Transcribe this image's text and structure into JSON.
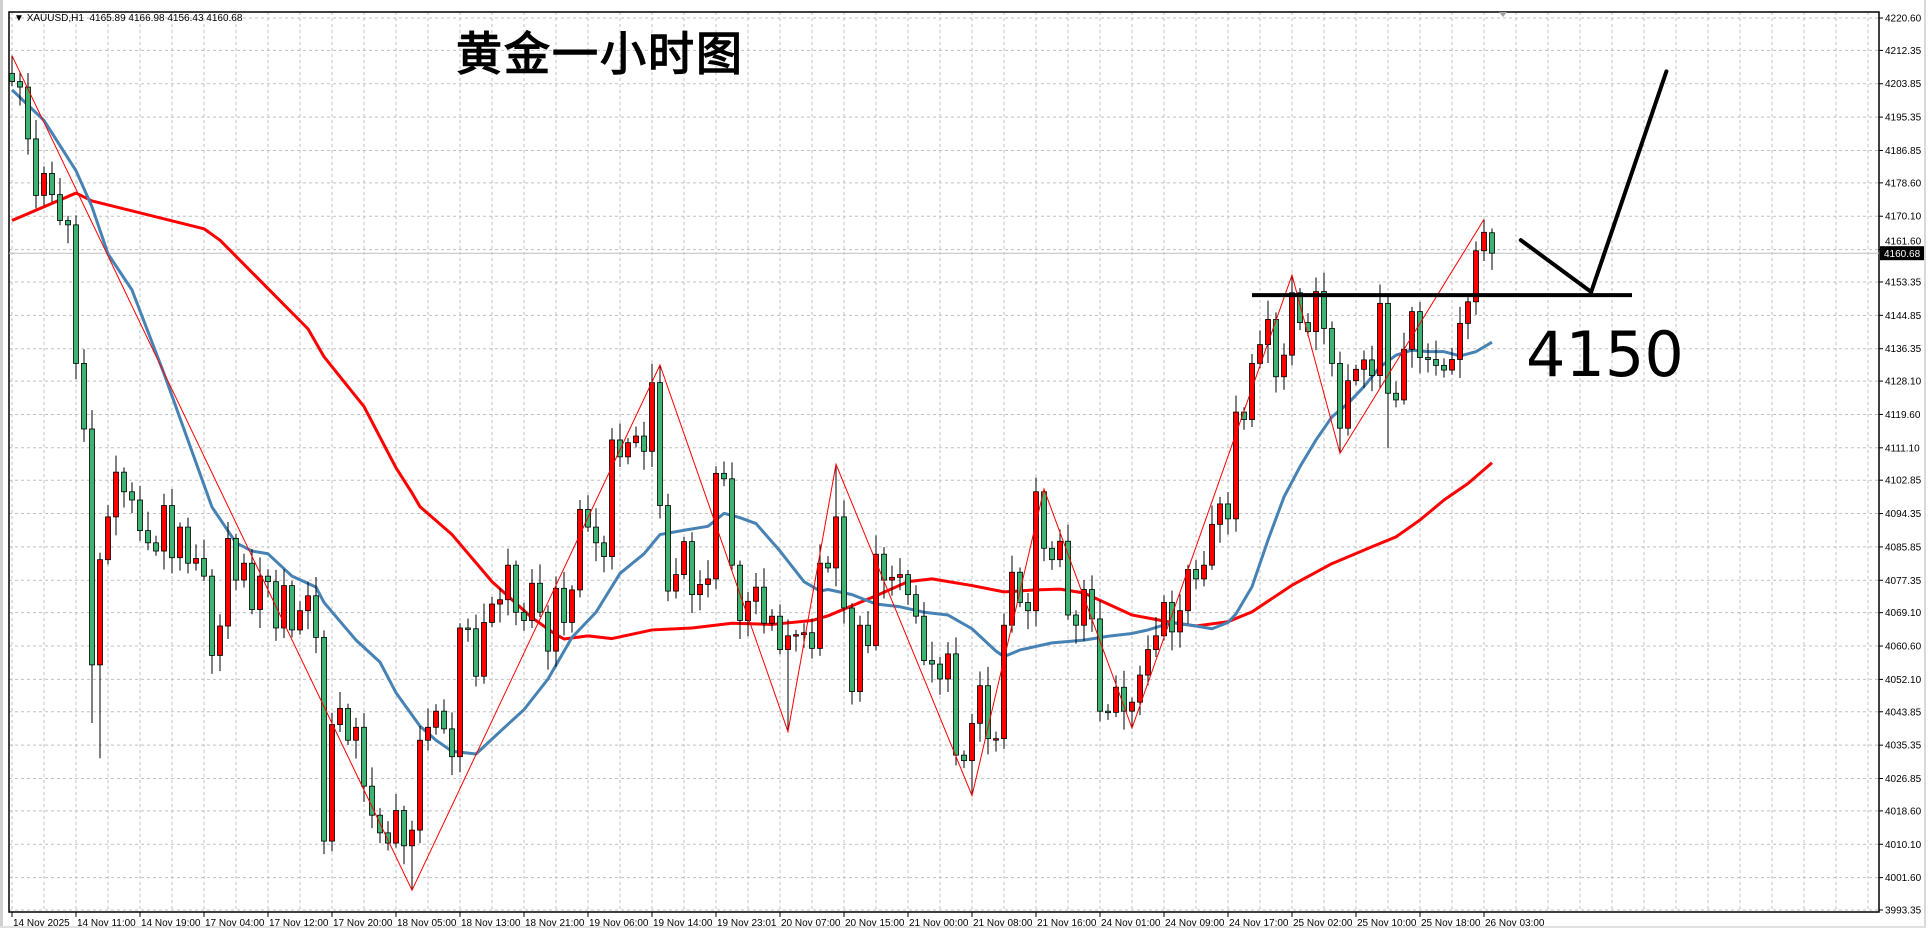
{
  "header": {
    "symbol": "XAUUSD,H1",
    "ohlc": "4165.89 4166.98 4156.43 4160.68",
    "arrow_icon": "triangle-down"
  },
  "title": "黄金一小时图",
  "level_label": "4150",
  "current_price_label": "4160.68",
  "colors": {
    "bull": "#FF0000",
    "bear": "#3CB371",
    "ma_fast": "#4682B4",
    "ma_slow": "#FF0000",
    "zigzag": "#FF0000",
    "grid": "#C0C0C0",
    "annotation": "#000000"
  },
  "chart_data": {
    "type": "candlestick",
    "title": "黄金一小时图",
    "symbol": "XAUUSD",
    "timeframe": "H1",
    "ylim": [
      3993.35,
      4220.6
    ],
    "grid": true,
    "y_ticks": [
      "4220.60",
      "4212.35",
      "4203.85",
      "4195.35",
      "4186.85",
      "4178.60",
      "4170.10",
      "4161.60",
      "4153.35",
      "4144.85",
      "4136.35",
      "4128.10",
      "4119.60",
      "4111.10",
      "4102.85",
      "4094.35",
      "4085.85",
      "4077.35",
      "4069.10",
      "4060.60",
      "4052.10",
      "4043.85",
      "4035.35",
      "4026.85",
      "4018.60",
      "4010.10",
      "4001.60",
      "3993.35"
    ],
    "x_ticks": [
      "14 Nov 2025",
      "14 Nov 11:00",
      "14 Nov 19:00",
      "17 Nov 04:00",
      "17 Nov 12:00",
      "17 Nov 20:00",
      "18 Nov 05:00",
      "18 Nov 13:00",
      "18 Nov 21:00",
      "19 Nov 06:00",
      "19 Nov 14:00",
      "19 Nov 23:01",
      "20 Nov 07:00",
      "20 Nov 15:00",
      "21 Nov 00:00",
      "21 Nov 08:00",
      "21 Nov 16:00",
      "24 Nov 01:00",
      "24 Nov 09:00",
      "24 Nov 17:00",
      "25 Nov 02:00",
      "25 Nov 10:00",
      "25 Nov 18:00",
      "26 Nov 03:00"
    ],
    "x_tick_every_bars": 8,
    "first_open": 4206.5,
    "closes": [
      4204.4,
      4203,
      4189.8,
      4175.4,
      4181,
      4175.6,
      4169,
      4167.9,
      4132.6,
      4115.9,
      4055.8,
      4082.6,
      4093.5,
      4104.9,
      4099.9,
      4097.8,
      4090,
      4086.9,
      4084.8,
      4096.4,
      4083.1,
      4090.9,
      4081.7,
      4082.9,
      4078.4,
      4058.2,
      4065.7,
      4088,
      4077.4,
      4081.7,
      4069.9,
      4078.4,
      4077,
      4065.2,
      4076,
      4064.7,
      4069.6,
      4073.4,
      4062.8,
      4010.9,
      4040.6,
      4044.7,
      4036.6,
      4039.9,
      4024.9,
      4017.5,
      4013,
      4010.4,
      4018.7,
      4009.7,
      4013.7,
      4036.6,
      4039.9,
      4044,
      4039.5,
      4032.4,
      4065.2,
      4065,
      4052.9,
      4066.6,
      4071.3,
      4072.4,
      4081.2,
      4069.2,
      4067.1,
      4076.6,
      4069.2,
      4059.3,
      4075.3,
      4066.6,
      4074.9,
      4095.4,
      4090.9,
      4086.9,
      4083.4,
      4113.1,
      4108.8,
      4112.4,
      4114.1,
      4110.2,
      4127.7,
      4096.4,
      4074.6,
      4078.8,
      4087.2,
      4073.7,
      4076.3,
      4077.7,
      4104.6,
      4103.2,
      4081.2,
      4067.1,
      4072,
      4075.6,
      4066.4,
      4068.2,
      4059.7,
      4063.2,
      4063.5,
      4064,
      4060,
      4081.7,
      4080.5,
      4093.5,
      4070.3,
      4049,
      4065.9,
      4060.7,
      4084,
      4077.4,
      4078.1,
      4078.8,
      4073.7,
      4068.2,
      4056.9,
      4056,
      4052.2,
      4058.6,
      4032.8,
      4031.4,
      4040.9,
      4050.5,
      4037,
      4037,
      4065.9,
      4079.4,
      4071.7,
      4069.6,
      4099.9,
      4085.5,
      4082.6,
      4087.3,
      4068.5,
      4065.9,
      4075,
      4067.5,
      4044,
      4043.7,
      4050.1,
      4044,
      4046.3,
      4053.2,
      4059.7,
      4063.2,
      4071.7,
      4064.2,
      4069.6,
      4080.1,
      4077.7,
      4081.2,
      4091.6,
      4096.8,
      4093,
      4120.2,
      4118.3,
      4132.6,
      4137.4,
      4143.8,
      4129.2,
      4134.7,
      4150.6,
      4143,
      4140.7,
      4150.9,
      4141.5,
      4132.6,
      4116.1,
      4128.2,
      4131.1,
      4133.5,
      4129.5,
      4147.9,
      4125,
      4123.3,
      4136.2,
      4145.8,
      4134.1,
      4133.6,
      4132.1,
      4130.9,
      4133.6,
      4142.8,
      4148.3,
      4161.3,
      4166,
      4160.68
    ],
    "last_bar": {
      "open": 4165.89,
      "high": 4166.98,
      "low": 4156.43,
      "close": 4160.68
    },
    "extremes": [
      [
        0,
        4211,
        null
      ],
      [
        10,
        null,
        4041
      ],
      [
        11,
        null,
        4032
      ],
      [
        50,
        null,
        3998.4
      ],
      [
        81,
        4132.2,
        null
      ],
      [
        97,
        null,
        4038.8
      ],
      [
        103,
        4106.9,
        null
      ],
      [
        120,
        null,
        4022.5
      ],
      [
        129,
        4100.6,
        null
      ],
      [
        140,
        null,
        4039.7
      ],
      [
        160,
        4155.1,
        null
      ],
      [
        166,
        null,
        4109.7
      ],
      [
        172,
        null,
        4111
      ],
      [
        184,
        4169.3,
        null
      ]
    ],
    "series": [
      {
        "name": "MA fast",
        "points": [
          [
            0,
            4202.3
          ],
          [
            4,
            4194.5
          ],
          [
            8,
            4181.7
          ],
          [
            10,
            4172.5
          ],
          [
            12,
            4160.5
          ],
          [
            15,
            4151.3
          ],
          [
            19,
            4130
          ],
          [
            22,
            4113
          ],
          [
            25,
            4096
          ],
          [
            28,
            4086.9
          ],
          [
            30,
            4084.8
          ],
          [
            32,
            4084.1
          ],
          [
            35,
            4078.4
          ],
          [
            38,
            4075.6
          ],
          [
            39,
            4071.7
          ],
          [
            43,
            4062.1
          ],
          [
            46,
            4056.5
          ],
          [
            48,
            4048.7
          ],
          [
            51,
            4040.2
          ],
          [
            53,
            4036.6
          ],
          [
            55,
            4033.8
          ],
          [
            58,
            4033.1
          ],
          [
            61,
            4038.8
          ],
          [
            64,
            4044.4
          ],
          [
            67,
            4052.2
          ],
          [
            70,
            4062.8
          ],
          [
            73,
            4069.2
          ],
          [
            76,
            4079.1
          ],
          [
            79,
            4084.1
          ],
          [
            81,
            4089
          ],
          [
            84,
            4090.1
          ],
          [
            87,
            4091.1
          ],
          [
            89,
            4094.4
          ],
          [
            91,
            4093.3
          ],
          [
            93,
            4091.8
          ],
          [
            96,
            4084.8
          ],
          [
            99,
            4077
          ],
          [
            101,
            4074.6
          ],
          [
            102,
            4075
          ],
          [
            105,
            4073.7
          ],
          [
            108,
            4071.3
          ],
          [
            111,
            4070.6
          ],
          [
            114,
            4069.2
          ],
          [
            117,
            4068.5
          ],
          [
            120,
            4065
          ],
          [
            123,
            4059.3
          ],
          [
            124,
            4057.9
          ],
          [
            126,
            4059.6
          ],
          [
            130,
            4061.4
          ],
          [
            134,
            4062.1
          ],
          [
            137,
            4063.1
          ],
          [
            140,
            4063.8
          ],
          [
            142,
            4064.7
          ],
          [
            145,
            4066.6
          ],
          [
            148,
            4065.7
          ],
          [
            150,
            4065
          ],
          [
            152,
            4066.6
          ],
          [
            153,
            4068.8
          ],
          [
            155,
            4075.7
          ],
          [
            157,
            4087.6
          ],
          [
            159,
            4098.6
          ],
          [
            161,
            4106.3
          ],
          [
            163,
            4113.1
          ],
          [
            165,
            4119
          ],
          [
            167,
            4122.4
          ],
          [
            169,
            4126.7
          ],
          [
            171,
            4131.7
          ],
          [
            173,
            4134.7
          ],
          [
            175,
            4136
          ],
          [
            177,
            4135.6
          ],
          [
            179,
            4135.6
          ],
          [
            181,
            4134.5
          ],
          [
            183,
            4135.6
          ],
          [
            185,
            4138
          ]
        ]
      },
      {
        "name": "MA slow",
        "points": [
          [
            0,
            4169
          ],
          [
            8,
            4176
          ],
          [
            10,
            4174
          ],
          [
            24,
            4166.9
          ],
          [
            26,
            4164
          ],
          [
            37,
            4141.4
          ],
          [
            39,
            4134.3
          ],
          [
            44,
            4121.6
          ],
          [
            48,
            4106
          ],
          [
            50,
            4099.6
          ],
          [
            51,
            4096.1
          ],
          [
            55,
            4089
          ],
          [
            60,
            4077
          ],
          [
            65,
            4067.8
          ],
          [
            68,
            4063.5
          ],
          [
            69,
            4062.4
          ],
          [
            72,
            4063.2
          ],
          [
            75,
            4062.5
          ],
          [
            80,
            4064.7
          ],
          [
            85,
            4065.2
          ],
          [
            90,
            4066.4
          ],
          [
            95,
            4066.1
          ],
          [
            100,
            4067.1
          ],
          [
            102,
            4068.3
          ],
          [
            108,
            4073.4
          ],
          [
            112,
            4077
          ],
          [
            115,
            4077.7
          ],
          [
            120,
            4076
          ],
          [
            124,
            4074.4
          ],
          [
            128,
            4074.9
          ],
          [
            131,
            4075.1
          ],
          [
            134,
            4074.1
          ],
          [
            137,
            4071.3
          ],
          [
            140,
            4068.5
          ],
          [
            145,
            4066.6
          ],
          [
            148,
            4065.7
          ],
          [
            152,
            4066.8
          ],
          [
            155,
            4069.3
          ],
          [
            160,
            4076.1
          ],
          [
            165,
            4081.6
          ],
          [
            170,
            4085.9
          ],
          [
            173,
            4088.4
          ],
          [
            176,
            4092.7
          ],
          [
            179,
            4097.8
          ],
          [
            182,
            4102
          ],
          [
            185,
            4107.3
          ]
        ]
      }
    ],
    "zigzag": [
      [
        0,
        4211
      ],
      [
        50,
        3998.4
      ],
      [
        81,
        4132.2
      ],
      [
        97,
        4038.8
      ],
      [
        103,
        4106.9
      ],
      [
        120,
        4022.5
      ],
      [
        129,
        4100.6
      ],
      [
        140,
        4039.7
      ],
      [
        160,
        4155.1
      ],
      [
        166,
        4109.7
      ],
      [
        184,
        4169.3
      ]
    ],
    "annotations": {
      "level_line": {
        "price": 4150,
        "from_bar": 155,
        "to_bar": 202.5,
        "label": "4150"
      },
      "arrow_path": [
        [
          188.6,
          4164
        ],
        [
          197.4,
          4150.8
        ],
        [
          206.8,
          4207
        ]
      ]
    },
    "current_price": 4160.68
  }
}
